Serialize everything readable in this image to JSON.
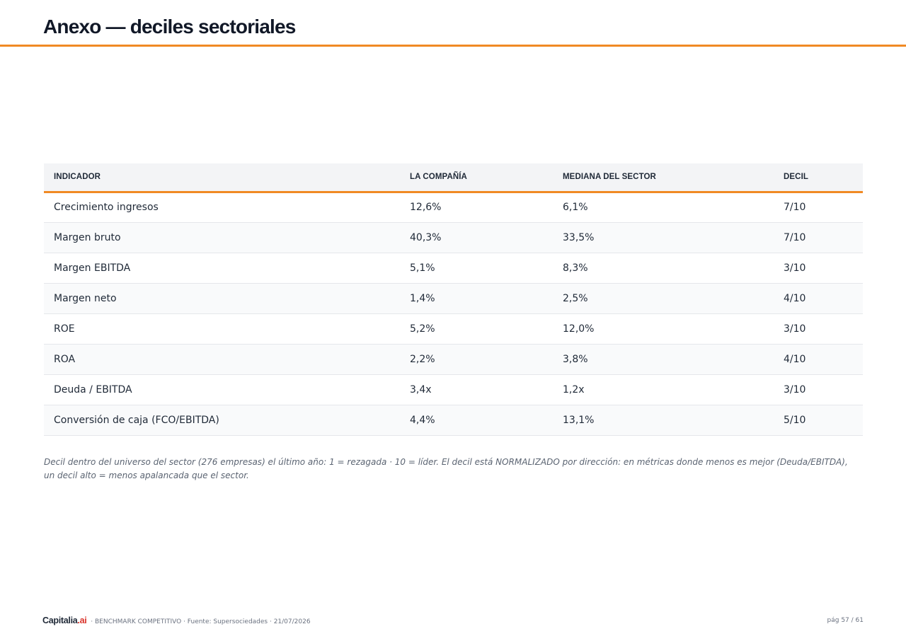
{
  "page": {
    "title": "Anexo — deciles sectoriales"
  },
  "table": {
    "headers": [
      "INDICADOR",
      "LA COMPAÑÍA",
      "MEDIANA DEL SECTOR",
      "DECIL"
    ],
    "rows": [
      [
        "Crecimiento ingresos",
        "12,6%",
        "6,1%",
        "7/10"
      ],
      [
        "Margen bruto",
        "40,3%",
        "33,5%",
        "7/10"
      ],
      [
        "Margen EBITDA",
        "5,1%",
        "8,3%",
        "3/10"
      ],
      [
        "Margen neto",
        "1,4%",
        "2,5%",
        "4/10"
      ],
      [
        "ROE",
        "5,2%",
        "12,0%",
        "3/10"
      ],
      [
        "ROA",
        "2,2%",
        "3,8%",
        "4/10"
      ],
      [
        "Deuda / EBITDA",
        "3,4x",
        "1,2x",
        "3/10"
      ],
      [
        "Conversión de caja (FCO/EBITDA)",
        "4,4%",
        "13,1%",
        "5/10"
      ]
    ]
  },
  "footnote": "Decil dentro del universo del sector (276 empresas) el último año: 1 = rezagada · 10 = líder. El decil está NORMALIZADO por dirección: en métricas donde menos es mejor (Deuda/EBITDA), un decil alto = menos apalancada que el sector.",
  "footer": {
    "brand_name": "Capitalia",
    "brand_suffix": ".ai",
    "meta": "· BENCHMARK COMPETITIVO · Fuente: Supersociedades · 21/07/2026",
    "page_label": "pág 57 / 61"
  },
  "colors": {
    "accent": "#f08a24",
    "brand_red": "#d9322a",
    "header_bg": "#f3f4f6"
  }
}
